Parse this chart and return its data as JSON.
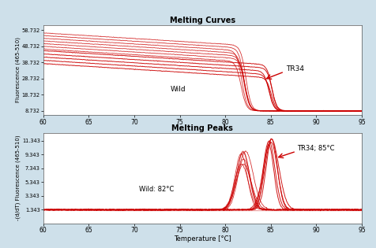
{
  "background_color": "#cee0ea",
  "panel_bg": "#ffffff",
  "title1": "Melting Curves",
  "title2": "Melting Peaks",
  "xlabel": "Temperature [°C]",
  "ylabel1": "Fluorescence (465-510)",
  "ylabel2": "-(d/dT) Fluorescence (465-510)",
  "xlim": [
    60,
    95
  ],
  "ylim1": [
    6.0,
    62.0
  ],
  "ylim2": [
    -0.6,
    12.5
  ],
  "yticks1": [
    8.732,
    18.732,
    28.732,
    38.732,
    48.732,
    58.732
  ],
  "yticks2": [
    1.343,
    3.343,
    5.343,
    7.343,
    9.343,
    11.343
  ],
  "xticks": [
    60,
    65,
    70,
    75,
    80,
    85,
    90,
    95
  ],
  "line_color": "#cc0000",
  "wild_label": "Wild",
  "tr34_label": "TR34",
  "wild_peak_label": "Wild: 82°C",
  "tr34_peak_label": "TR34; 85°C",
  "wild_melt_temp": 82,
  "tr34_melt_temp": 85,
  "wild_peak_temp": 82,
  "tr34_peak_temp": 85,
  "n_wild": 7,
  "n_tr34": 5
}
